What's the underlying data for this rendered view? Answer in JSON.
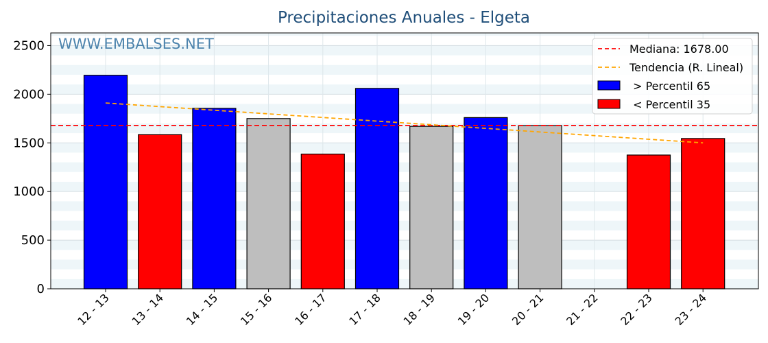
{
  "chart_data": {
    "type": "bar",
    "title": "Precipitaciones Anuales - Elgeta",
    "watermark": "WWW.EMBALSES.NET",
    "categories": [
      "12 - 13",
      "13 - 14",
      "14 - 15",
      "15 - 16",
      "16 - 17",
      "17 - 18",
      "18 - 19",
      "19 - 20",
      "20 - 21",
      "21 - 22",
      "22 - 23",
      "23 - 24"
    ],
    "values": [
      2195,
      1585,
      1855,
      1750,
      1385,
      2060,
      1670,
      1760,
      1678,
      null,
      1375,
      1545
    ],
    "classes": [
      "high",
      "low",
      "high",
      "mid",
      "low",
      "high",
      "mid",
      "high",
      "mid",
      "none",
      "low",
      "low"
    ],
    "ylim": [
      0,
      2630
    ],
    "yticks": [
      0,
      500,
      1000,
      1500,
      2000,
      2500
    ],
    "xlabel": "",
    "ylabel": "",
    "median": {
      "label": "Mediana: 1678.00",
      "value": 1678,
      "color": "#ff0000"
    },
    "trend": {
      "label": "Tendencia (R. Lineal)",
      "start": 1910,
      "end": 1500,
      "color": "#ffa500"
    },
    "legend": [
      {
        "label": "Mediana: 1678.00",
        "kind": "line",
        "color": "#ff0000"
      },
      {
        "label": "Tendencia (R. Lineal)",
        "kind": "line",
        "color": "#ffa500"
      },
      {
        "label": " > Percentil 65",
        "kind": "patch",
        "color": "#0000ff"
      },
      {
        "label": " < Percentil 35",
        "kind": "patch",
        "color": "#ff0000"
      }
    ],
    "colors": {
      "high": "#0000ff",
      "low": "#ff0000",
      "mid": "#bebebe"
    },
    "legend_position": "top-right",
    "grid": true
  }
}
